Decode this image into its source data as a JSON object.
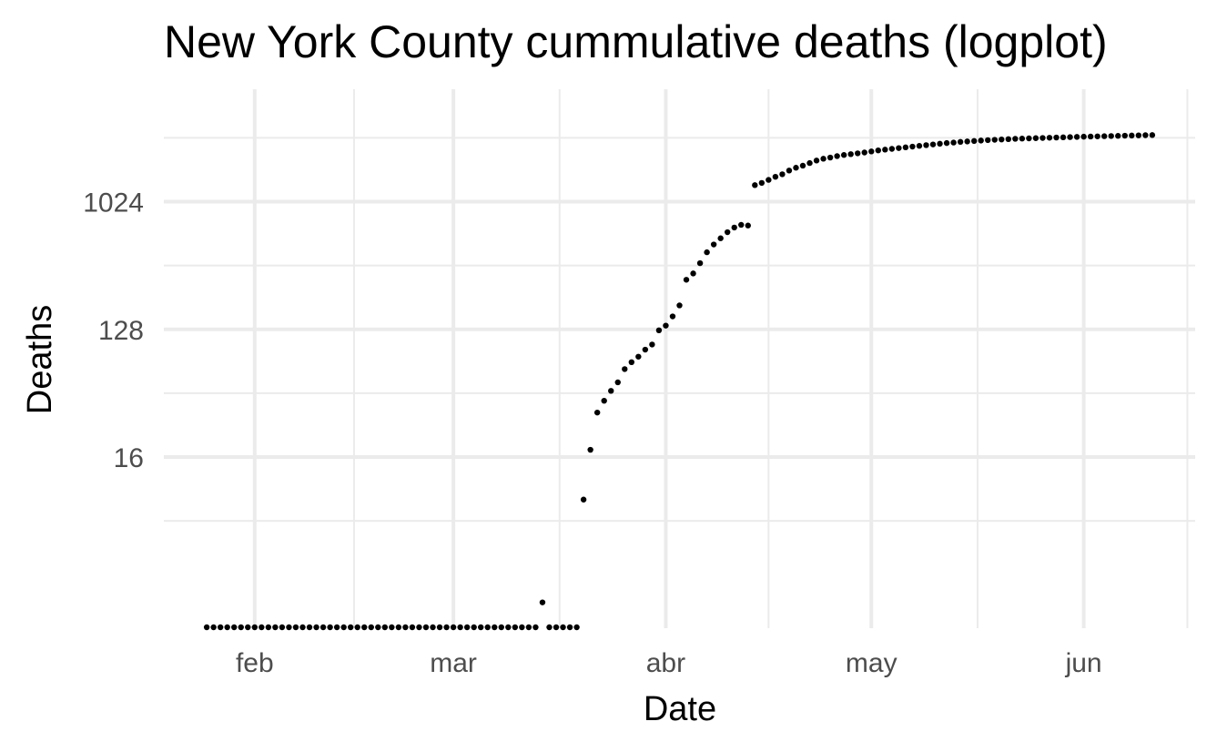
{
  "chart_data": {
    "type": "scatter",
    "title": "New York County cummulative deaths (logplot)",
    "xlabel": "Date",
    "ylabel": "Deaths",
    "x_scale": "date",
    "y_scale": "log2",
    "xlim": [
      "2020-01-21",
      "2020-06-15"
    ],
    "ylim": [
      1,
      4096
    ],
    "x_ticks": [
      {
        "date": "2020-02-01",
        "label": "feb"
      },
      {
        "date": "2020-03-01",
        "label": "mar"
      },
      {
        "date": "2020-04-01",
        "label": "abr"
      },
      {
        "date": "2020-05-01",
        "label": "may"
      },
      {
        "date": "2020-06-01",
        "label": "jun"
      }
    ],
    "y_ticks": [
      {
        "value": 16,
        "label": "16"
      },
      {
        "value": 128,
        "label": "128"
      },
      {
        "value": 1024,
        "label": "1024"
      }
    ],
    "grid": true,
    "point_color": "#000000",
    "series": [
      {
        "points": [
          {
            "x": "2020-01-25",
            "y": 1
          },
          {
            "x": "2020-01-26",
            "y": 1
          },
          {
            "x": "2020-01-27",
            "y": 1
          },
          {
            "x": "2020-01-28",
            "y": 1
          },
          {
            "x": "2020-01-29",
            "y": 1
          },
          {
            "x": "2020-01-30",
            "y": 1
          },
          {
            "x": "2020-01-31",
            "y": 1
          },
          {
            "x": "2020-02-01",
            "y": 1
          },
          {
            "x": "2020-02-02",
            "y": 1
          },
          {
            "x": "2020-02-03",
            "y": 1
          },
          {
            "x": "2020-02-04",
            "y": 1
          },
          {
            "x": "2020-02-05",
            "y": 1
          },
          {
            "x": "2020-02-06",
            "y": 1
          },
          {
            "x": "2020-02-07",
            "y": 1
          },
          {
            "x": "2020-02-08",
            "y": 1
          },
          {
            "x": "2020-02-09",
            "y": 1
          },
          {
            "x": "2020-02-10",
            "y": 1
          },
          {
            "x": "2020-02-11",
            "y": 1
          },
          {
            "x": "2020-02-12",
            "y": 1
          },
          {
            "x": "2020-02-13",
            "y": 1
          },
          {
            "x": "2020-02-14",
            "y": 1
          },
          {
            "x": "2020-02-15",
            "y": 1
          },
          {
            "x": "2020-02-16",
            "y": 1
          },
          {
            "x": "2020-02-17",
            "y": 1
          },
          {
            "x": "2020-02-18",
            "y": 1
          },
          {
            "x": "2020-02-19",
            "y": 1
          },
          {
            "x": "2020-02-20",
            "y": 1
          },
          {
            "x": "2020-02-21",
            "y": 1
          },
          {
            "x": "2020-02-22",
            "y": 1
          },
          {
            "x": "2020-02-23",
            "y": 1
          },
          {
            "x": "2020-02-24",
            "y": 1
          },
          {
            "x": "2020-02-25",
            "y": 1
          },
          {
            "x": "2020-02-26",
            "y": 1
          },
          {
            "x": "2020-02-27",
            "y": 1
          },
          {
            "x": "2020-02-28",
            "y": 1
          },
          {
            "x": "2020-02-29",
            "y": 1
          },
          {
            "x": "2020-03-01",
            "y": 1
          },
          {
            "x": "2020-03-02",
            "y": 1
          },
          {
            "x": "2020-03-03",
            "y": 1
          },
          {
            "x": "2020-03-04",
            "y": 1
          },
          {
            "x": "2020-03-05",
            "y": 1
          },
          {
            "x": "2020-03-06",
            "y": 1
          },
          {
            "x": "2020-03-07",
            "y": 1
          },
          {
            "x": "2020-03-08",
            "y": 1
          },
          {
            "x": "2020-03-09",
            "y": 1
          },
          {
            "x": "2020-03-10",
            "y": 1
          },
          {
            "x": "2020-03-11",
            "y": 1
          },
          {
            "x": "2020-03-12",
            "y": 1
          },
          {
            "x": "2020-03-13",
            "y": 1
          },
          {
            "x": "2020-03-14",
            "y": 1.5
          },
          {
            "x": "2020-03-15",
            "y": 1
          },
          {
            "x": "2020-03-16",
            "y": 1
          },
          {
            "x": "2020-03-17",
            "y": 1
          },
          {
            "x": "2020-03-18",
            "y": 1
          },
          {
            "x": "2020-03-19",
            "y": 1
          },
          {
            "x": "2020-03-20",
            "y": 8
          },
          {
            "x": "2020-03-21",
            "y": 18
          },
          {
            "x": "2020-03-22",
            "y": 33
          },
          {
            "x": "2020-03-23",
            "y": 40
          },
          {
            "x": "2020-03-24",
            "y": 47
          },
          {
            "x": "2020-03-25",
            "y": 54
          },
          {
            "x": "2020-03-26",
            "y": 67
          },
          {
            "x": "2020-03-27",
            "y": 75
          },
          {
            "x": "2020-03-28",
            "y": 82
          },
          {
            "x": "2020-03-29",
            "y": 92
          },
          {
            "x": "2020-03-30",
            "y": 100
          },
          {
            "x": "2020-03-31",
            "y": 126
          },
          {
            "x": "2020-04-01",
            "y": 136
          },
          {
            "x": "2020-04-02",
            "y": 158
          },
          {
            "x": "2020-04-03",
            "y": 189
          },
          {
            "x": "2020-04-04",
            "y": 287
          },
          {
            "x": "2020-04-05",
            "y": 318
          },
          {
            "x": "2020-04-06",
            "y": 376
          },
          {
            "x": "2020-04-07",
            "y": 449
          },
          {
            "x": "2020-04-08",
            "y": 510
          },
          {
            "x": "2020-04-09",
            "y": 564
          },
          {
            "x": "2020-04-10",
            "y": 623
          },
          {
            "x": "2020-04-11",
            "y": 672
          },
          {
            "x": "2020-04-12",
            "y": 702
          },
          {
            "x": "2020-04-13",
            "y": 694
          },
          {
            "x": "2020-04-14",
            "y": 1340
          },
          {
            "x": "2020-04-15",
            "y": 1390
          },
          {
            "x": "2020-04-16",
            "y": 1460
          },
          {
            "x": "2020-04-17",
            "y": 1535
          },
          {
            "x": "2020-04-18",
            "y": 1600
          },
          {
            "x": "2020-04-19",
            "y": 1700
          },
          {
            "x": "2020-04-20",
            "y": 1780
          },
          {
            "x": "2020-04-21",
            "y": 1840
          },
          {
            "x": "2020-04-22",
            "y": 1920
          },
          {
            "x": "2020-04-23",
            "y": 2000
          },
          {
            "x": "2020-04-24",
            "y": 2060
          },
          {
            "x": "2020-04-25",
            "y": 2100
          },
          {
            "x": "2020-04-26",
            "y": 2150
          },
          {
            "x": "2020-04-27",
            "y": 2190
          },
          {
            "x": "2020-04-28",
            "y": 2220
          },
          {
            "x": "2020-04-29",
            "y": 2250
          },
          {
            "x": "2020-04-30",
            "y": 2280
          },
          {
            "x": "2020-05-01",
            "y": 2320
          },
          {
            "x": "2020-05-02",
            "y": 2360
          },
          {
            "x": "2020-05-03",
            "y": 2390
          },
          {
            "x": "2020-05-04",
            "y": 2420
          },
          {
            "x": "2020-05-05",
            "y": 2450
          },
          {
            "x": "2020-05-06",
            "y": 2480
          },
          {
            "x": "2020-05-07",
            "y": 2510
          },
          {
            "x": "2020-05-08",
            "y": 2540
          },
          {
            "x": "2020-05-09",
            "y": 2570
          },
          {
            "x": "2020-05-10",
            "y": 2600
          },
          {
            "x": "2020-05-11",
            "y": 2630
          },
          {
            "x": "2020-05-12",
            "y": 2660
          },
          {
            "x": "2020-05-13",
            "y": 2680
          },
          {
            "x": "2020-05-14",
            "y": 2710
          },
          {
            "x": "2020-05-15",
            "y": 2730
          },
          {
            "x": "2020-05-16",
            "y": 2750
          },
          {
            "x": "2020-05-17",
            "y": 2770
          },
          {
            "x": "2020-05-18",
            "y": 2790
          },
          {
            "x": "2020-05-19",
            "y": 2805
          },
          {
            "x": "2020-05-20",
            "y": 2820
          },
          {
            "x": "2020-05-21",
            "y": 2835
          },
          {
            "x": "2020-05-22",
            "y": 2850
          },
          {
            "x": "2020-05-23",
            "y": 2860
          },
          {
            "x": "2020-05-24",
            "y": 2870
          },
          {
            "x": "2020-05-25",
            "y": 2880
          },
          {
            "x": "2020-05-26",
            "y": 2890
          },
          {
            "x": "2020-05-27",
            "y": 2900
          },
          {
            "x": "2020-05-28",
            "y": 2910
          },
          {
            "x": "2020-05-29",
            "y": 2920
          },
          {
            "x": "2020-05-30",
            "y": 2930
          },
          {
            "x": "2020-05-31",
            "y": 2940
          },
          {
            "x": "2020-06-01",
            "y": 2950
          },
          {
            "x": "2020-06-02",
            "y": 2958
          },
          {
            "x": "2020-06-03",
            "y": 2966
          },
          {
            "x": "2020-06-04",
            "y": 2974
          },
          {
            "x": "2020-06-05",
            "y": 2982
          },
          {
            "x": "2020-06-06",
            "y": 2990
          },
          {
            "x": "2020-06-07",
            "y": 2998
          },
          {
            "x": "2020-06-08",
            "y": 3006
          },
          {
            "x": "2020-06-09",
            "y": 3014
          },
          {
            "x": "2020-06-10",
            "y": 3022
          },
          {
            "x": "2020-06-11",
            "y": 3030
          }
        ]
      }
    ]
  }
}
